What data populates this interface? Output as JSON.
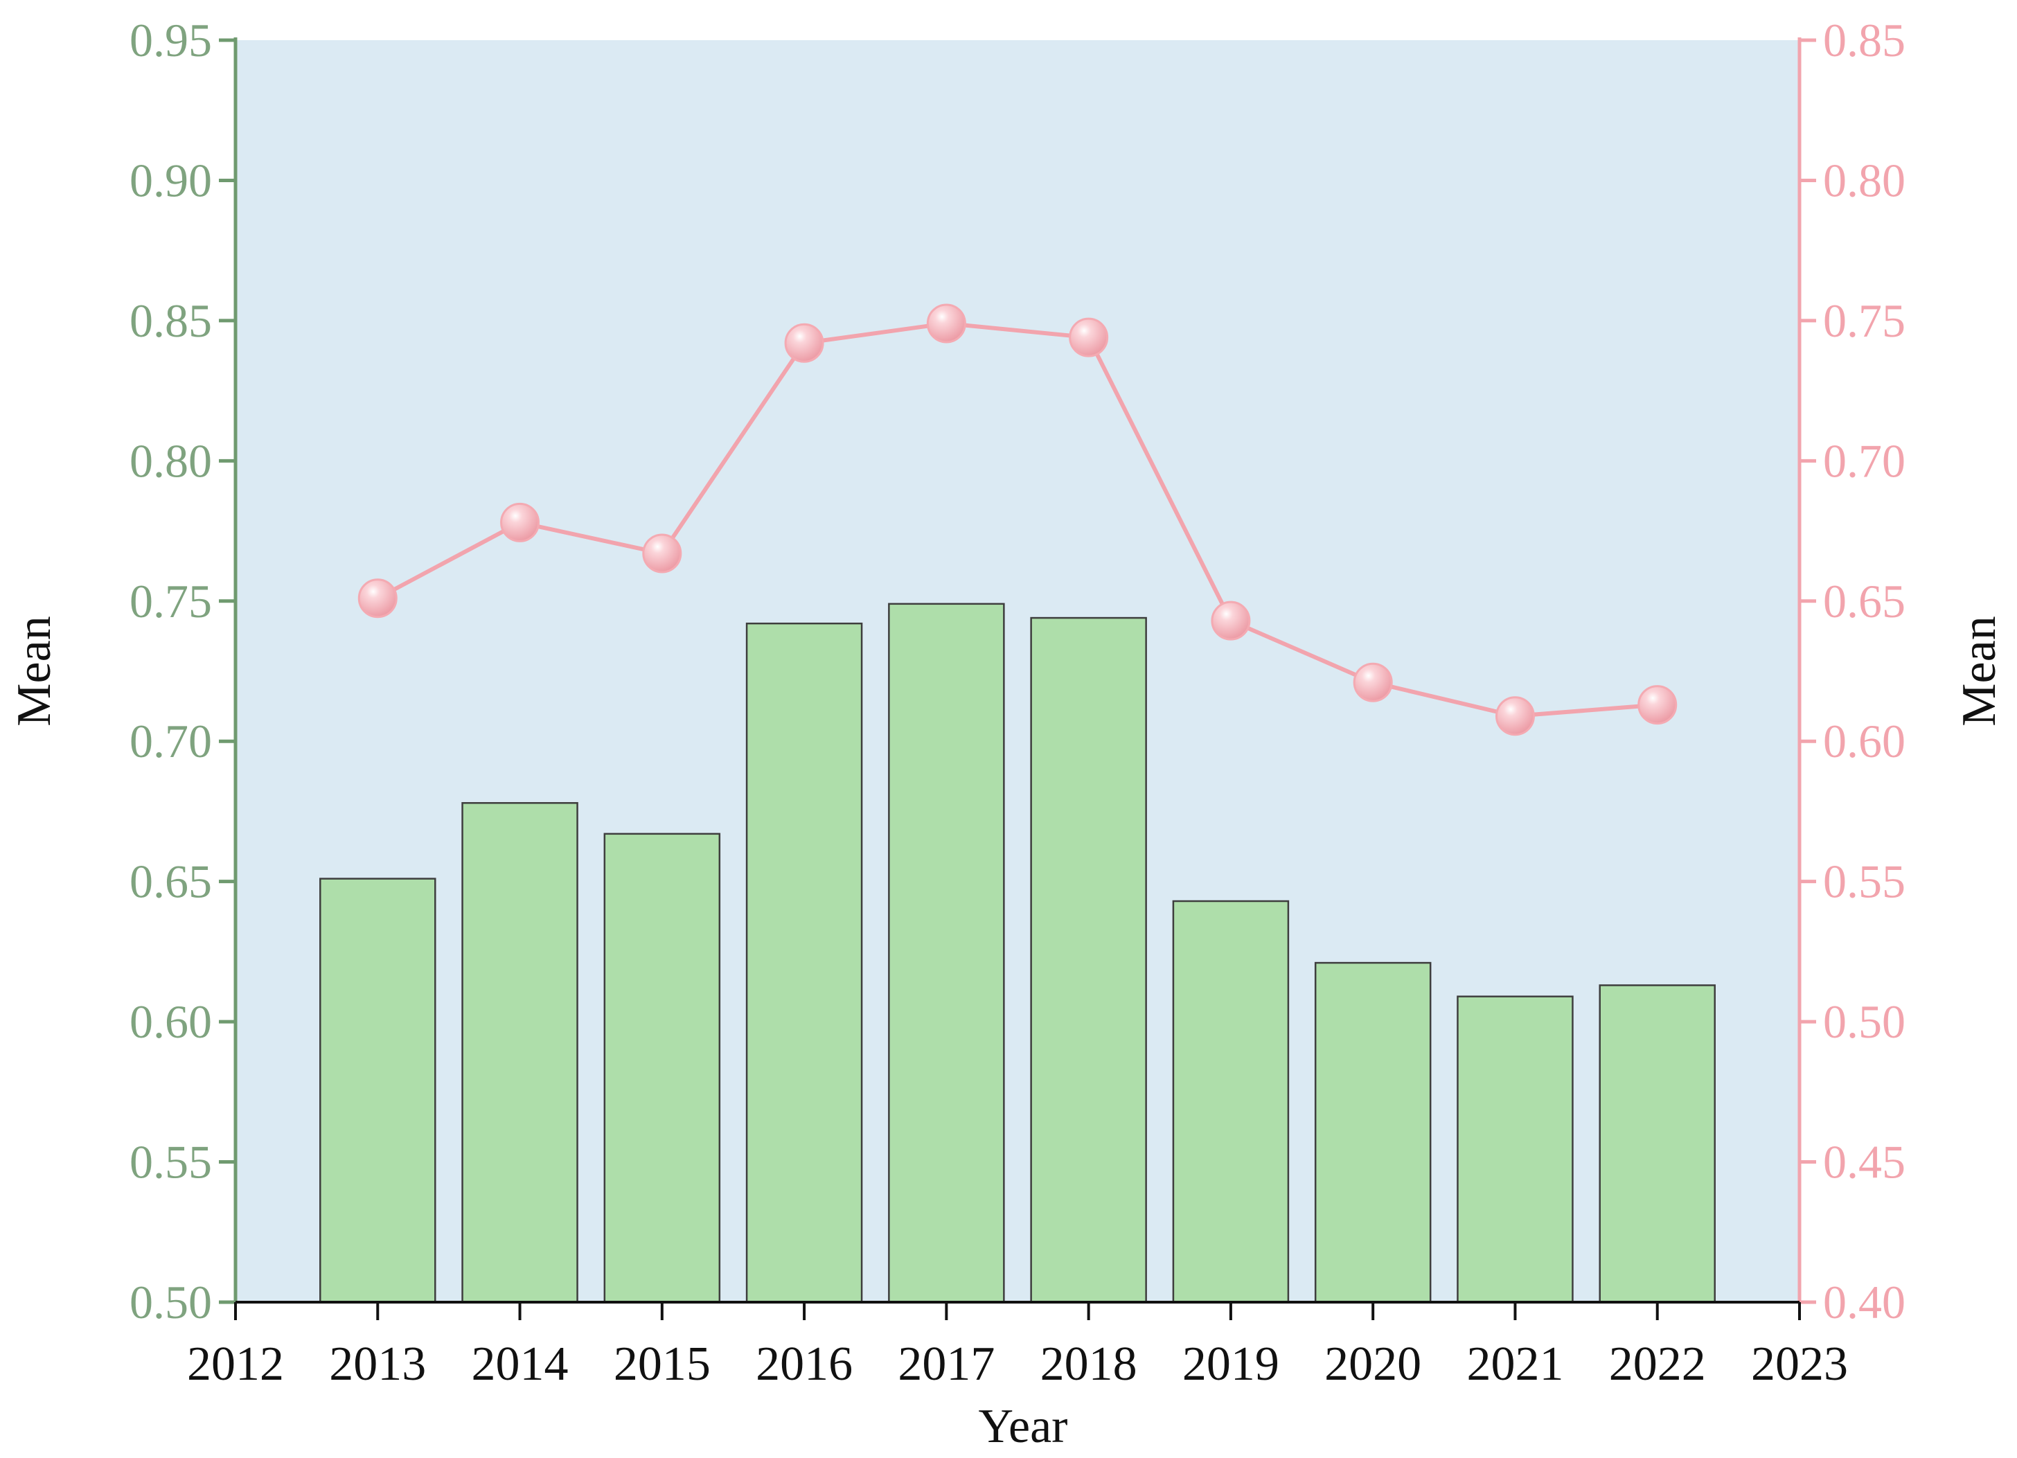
{
  "chart_data": {
    "type": "bar",
    "xlabel": "Year",
    "ylabel_left": "Mean",
    "ylabel_right": "Mean",
    "x_ticks": [
      "2012",
      "2013",
      "2014",
      "2015",
      "2016",
      "2017",
      "2018",
      "2019",
      "2020",
      "2021",
      "2022",
      "2023"
    ],
    "xlim": [
      2012,
      2023
    ],
    "ylim_left": [
      0.5,
      0.95
    ],
    "ylim_right": [
      0.4,
      0.85
    ],
    "y_ticks_left": [
      "0.50",
      "0.55",
      "0.60",
      "0.65",
      "0.70",
      "0.75",
      "0.80",
      "0.85",
      "0.90",
      "0.95"
    ],
    "y_ticks_right": [
      "0.40",
      "0.45",
      "0.50",
      "0.55",
      "0.60",
      "0.65",
      "0.70",
      "0.75",
      "0.80",
      "0.85"
    ],
    "categories": [
      2013,
      2014,
      2015,
      2016,
      2017,
      2018,
      2019,
      2020,
      2021,
      2022
    ],
    "series": [
      {
        "type": "bar",
        "axis": "left",
        "values": [
          0.651,
          0.678,
          0.667,
          0.742,
          0.749,
          0.744,
          0.643,
          0.621,
          0.609,
          0.613
        ]
      },
      {
        "type": "line",
        "axis": "right",
        "values": [
          0.651,
          0.678,
          0.667,
          0.742,
          0.749,
          0.744,
          0.643,
          0.621,
          0.609,
          0.613
        ]
      }
    ],
    "grid": false,
    "colors": {
      "plot_background": "#dbeaf3",
      "bar_fill": "#aedeaa",
      "bar_stroke": "#3e3e3e",
      "left_axis": "#6f9a6f",
      "left_tick_text": "#7fa37f",
      "right_axis": "#f2a4ad",
      "line": "#f2a4ad",
      "marker": "#f4aab2",
      "bottom_axis": "#111111"
    }
  }
}
